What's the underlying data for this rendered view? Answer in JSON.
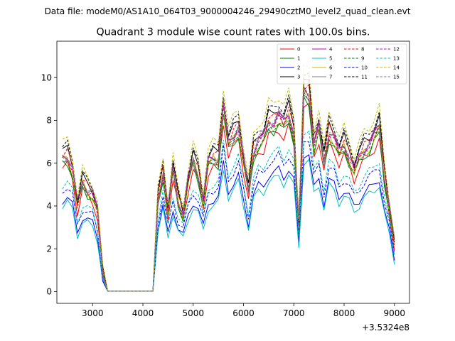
{
  "suptitle": "Data file: modeM0/AS1A10_064T03_9000004246_29490cztM0_level2_quad_clean.evt",
  "chart_data": {
    "type": "line",
    "title": "Quadrant 3 module wise count rates with 100.0s bins.",
    "xlabel": "",
    "ylabel": "",
    "x_offset_label": "+3.5324e8",
    "xlim": [
      2290,
      9300
    ],
    "ylim": [
      -0.55,
      11.7
    ],
    "xticks": [
      3000,
      4000,
      5000,
      6000,
      7000,
      8000,
      9000
    ],
    "xtick_labels": [
      "3000",
      "4000",
      "5000",
      "6000",
      "7000",
      "8000",
      "9000"
    ],
    "yticks": [
      0,
      2,
      4,
      6,
      8,
      10
    ],
    "ytick_labels": [
      "0",
      "2",
      "4",
      "6",
      "8",
      "10"
    ],
    "grid": false,
    "legend_position": "top-right",
    "x": [
      2400,
      2500,
      2600,
      2700,
      2800,
      2900,
      3000,
      3100,
      3200,
      3300,
      3400,
      3500,
      3600,
      3700,
      3800,
      3900,
      4000,
      4100,
      4200,
      4300,
      4400,
      4500,
      4600,
      4700,
      4800,
      4900,
      5000,
      5100,
      5200,
      5300,
      5400,
      5500,
      5600,
      5700,
      5800,
      5900,
      6000,
      6100,
      6200,
      6300,
      6400,
      6500,
      6600,
      6700,
      6800,
      6900,
      7000,
      7100,
      7200,
      7300,
      7400,
      7500,
      7600,
      7700,
      7800,
      7900,
      8000,
      8100,
      8200,
      8300,
      8400,
      8500,
      8600,
      8700,
      8800,
      8900,
      9000
    ],
    "base": [
      6.0,
      6.1,
      5.5,
      3.9,
      4.9,
      4.6,
      4.4,
      3.6,
      0.9,
      0.03,
      0.03,
      0.03,
      0.03,
      0.03,
      0.03,
      0.03,
      0.03,
      0.03,
      0.03,
      4.1,
      5.4,
      3.7,
      5.5,
      4.1,
      3.5,
      5.0,
      5.9,
      5.3,
      4.1,
      5.8,
      6.0,
      6.0,
      8.3,
      6.6,
      7.0,
      7.4,
      5.9,
      4.5,
      6.3,
      6.8,
      6.9,
      7.6,
      7.6,
      7.9,
      7.5,
      8.0,
      7.1,
      3.1,
      9.0,
      8.9,
      6.6,
      7.4,
      5.8,
      7.2,
      6.9,
      6.2,
      6.6,
      6.1,
      5.5,
      6.0,
      6.4,
      6.6,
      7.0,
      7.4,
      5.2,
      3.8,
      2.2
    ],
    "series": [
      {
        "name": "0",
        "color": "#ff0000",
        "style": "solid"
      },
      {
        "name": "1",
        "color": "#008000",
        "style": "solid"
      },
      {
        "name": "2",
        "color": "#0000ff",
        "style": "solid"
      },
      {
        "name": "3",
        "color": "#000000",
        "style": "solid"
      },
      {
        "name": "4",
        "color": "#bf00bf",
        "style": "solid"
      },
      {
        "name": "5",
        "color": "#00bfbf",
        "style": "solid"
      },
      {
        "name": "6",
        "color": "#bfbf00",
        "style": "solid"
      },
      {
        "name": "7",
        "color": "#808080",
        "style": "solid"
      },
      {
        "name": "8",
        "color": "#ff0000",
        "style": "dashed"
      },
      {
        "name": "9",
        "color": "#008000",
        "style": "dashed"
      },
      {
        "name": "10",
        "color": "#0000ff",
        "style": "dashed"
      },
      {
        "name": "11",
        "color": "#000000",
        "style": "dashed"
      },
      {
        "name": "12",
        "color": "#bf00bf",
        "style": "dashed"
      },
      {
        "name": "13",
        "color": "#00bfbf",
        "style": "dashed"
      },
      {
        "name": "14",
        "color": "#bfbf00",
        "style": "dashed"
      },
      {
        "name": "15",
        "color": "#808080",
        "style": "dashed"
      }
    ],
    "scales": [
      0.96,
      0.99,
      0.72,
      1.09,
      1.05,
      0.68,
      1.02,
      1.03,
      1.06,
      1.01,
      0.8,
      1.12,
      1.04,
      0.84,
      1.16,
      1.06
    ]
  }
}
